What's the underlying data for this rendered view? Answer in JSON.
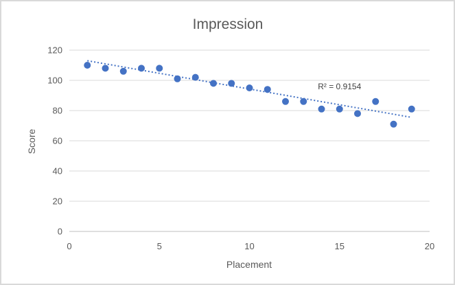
{
  "chart_data": {
    "type": "scatter",
    "title": "Impression",
    "xlabel": "Placement",
    "ylabel": "Score",
    "xlim": [
      0,
      20
    ],
    "ylim": [
      0,
      120
    ],
    "xticks": [
      0,
      5,
      10,
      15,
      20
    ],
    "yticks": [
      0,
      20,
      40,
      60,
      80,
      100,
      120
    ],
    "grid": "horizontal major gridlines",
    "legend": "none",
    "series": [
      {
        "x": [
          1,
          2,
          3,
          4,
          5,
          6,
          7,
          8,
          9,
          10,
          11,
          12,
          13,
          14,
          15,
          16,
          17,
          18,
          19
        ],
        "y": [
          110,
          108,
          106,
          108,
          108,
          101,
          102,
          98,
          98,
          95,
          94,
          86,
          86,
          81,
          81,
          78,
          86,
          71,
          81
        ],
        "color": "#4472c4"
      }
    ],
    "trendline": {
      "type": "linear",
      "style": "dotted",
      "color": "#4472c4",
      "x": [
        1,
        19
      ],
      "y": [
        113,
        75.5
      ]
    },
    "annotations": [
      {
        "text": "R² = 0.9154",
        "x": 15,
        "y": 94
      }
    ]
  }
}
